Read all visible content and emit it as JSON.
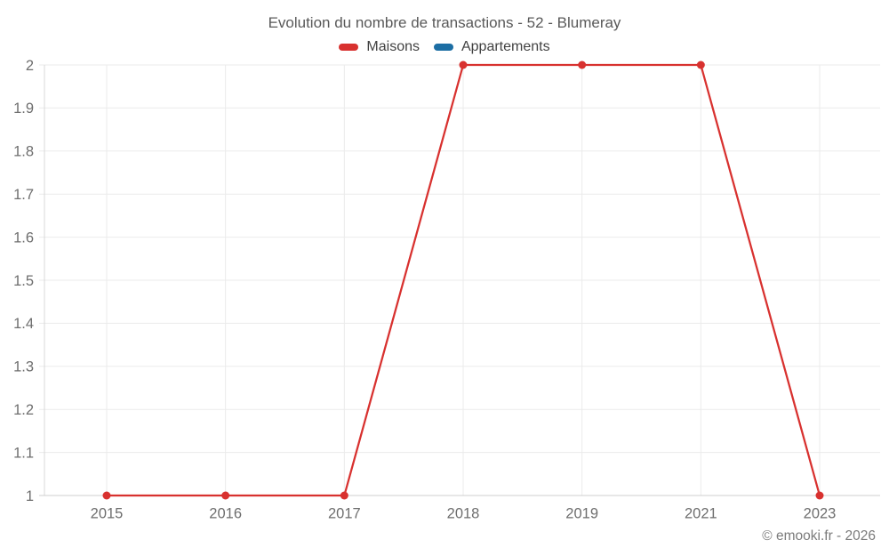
{
  "chart_data": {
    "type": "line",
    "title": "Evolution du nombre de transactions - 52 - Blumeray",
    "categories": [
      "2015",
      "2016",
      "2017",
      "2018",
      "2019",
      "2021",
      "2023"
    ],
    "series": [
      {
        "name": "Maisons",
        "color": "#d8312f",
        "values": [
          1,
          1,
          1,
          2,
          2,
          2,
          1
        ]
      },
      {
        "name": "Appartements",
        "color": "#1c6ea4",
        "values": []
      }
    ],
    "xlabel": "",
    "ylabel": "",
    "ylim": [
      1,
      2
    ],
    "ytick_step": 0.1,
    "yticks": [
      "1",
      "1.1",
      "1.2",
      "1.3",
      "1.4",
      "1.5",
      "1.6",
      "1.7",
      "1.8",
      "1.9",
      "2"
    ],
    "grid": true,
    "legend_position": "top",
    "marker": "circle"
  },
  "footer": {
    "copyright": "© emooki.fr - 2026"
  }
}
